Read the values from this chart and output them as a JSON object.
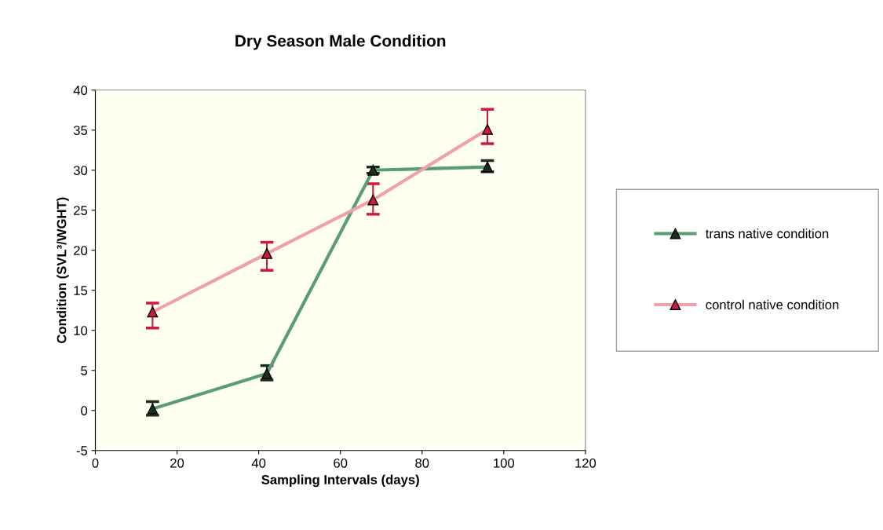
{
  "chart_data": {
    "type": "line",
    "title": "Dry Season Male Condition",
    "xlabel": "Sampling Intervals (days)",
    "ylabel": "Condition (SVL³/WGHT)",
    "x": [
      14,
      42,
      68,
      96
    ],
    "series": [
      {
        "name": "trans native condition",
        "color": "#5a9e6f",
        "values": [
          0.2,
          4.6,
          30.0,
          30.4
        ],
        "errors": [
          [
            -0.6,
            1.1
          ],
          [
            3.8,
            5.6
          ],
          [
            29.6,
            30.4
          ],
          [
            29.8,
            31.2
          ]
        ]
      },
      {
        "name": "control native condition",
        "color": "#f0a0a8",
        "values": [
          12.3,
          19.6,
          26.3,
          35.1
        ],
        "errors": [
          [
            10.3,
            13.4
          ],
          [
            17.5,
            21.0
          ],
          [
            24.5,
            28.3
          ],
          [
            33.3,
            37.6
          ]
        ]
      }
    ],
    "xlim": [
      0,
      120
    ],
    "xticks": [
      0,
      20,
      40,
      60,
      80,
      100,
      120
    ],
    "ylim": [
      -5,
      40
    ],
    "yticks": [
      -5,
      0,
      5,
      10,
      15,
      20,
      25,
      30,
      35,
      40
    ],
    "grid": false,
    "legend": "right",
    "marker": "triangle",
    "line_style": "solid"
  }
}
